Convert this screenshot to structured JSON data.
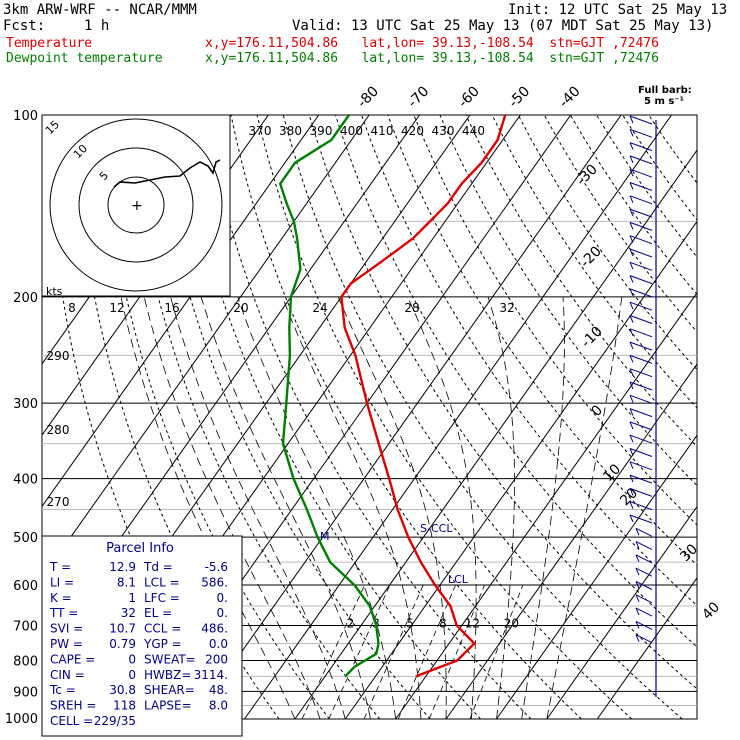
{
  "header": {
    "model": "3km ARW-WRF -- NCAR/MMM",
    "init": "Init: 12 UTC Sat 25 May 13",
    "fcst_label": "Fcst:",
    "fcst_value": "1 h",
    "valid": "Valid: 13 UTC Sat 25 May 13 (07 MDT Sat 25 May 13)",
    "temp_label": "Temperature",
    "temp_loc": "x,y=176.11,504.86   lat,lon= 39.13,-108.54  stn=GJT ,72476",
    "dew_label": "Dewpoint temperature",
    "dew_loc": "x,y=176.11,504.86   lat,lon= 39.13,-108.54  stn=GJT ,72476"
  },
  "colors": {
    "temperature": "#e00000",
    "dewpoint": "#008000",
    "barbs": "#00008b",
    "hodograph": "#000000"
  },
  "chart_data": {
    "type": "skew-t log-p sounding",
    "pressure_levels": [
      "100",
      "200",
      "300",
      "400",
      "500",
      "600",
      "700",
      "800",
      "900",
      "1000"
    ],
    "top_isotherm_labels": [
      "-80",
      "-70",
      "-60",
      "-50",
      "-40"
    ],
    "right_isotherm_labels": [
      "-30",
      "-20",
      "-10",
      "0",
      "10",
      "20",
      "30",
      "40"
    ],
    "theta_labels": [
      "370",
      "380",
      "390",
      "400",
      "410",
      "420",
      "430",
      "440"
    ],
    "theta_labels_left": [
      "290",
      "280",
      "270"
    ],
    "mixing_ratio_labels": [
      "2",
      "3",
      "5",
      "8",
      "12",
      "20"
    ],
    "hodograph_speed_labels": [
      "8",
      "12",
      "16",
      "20",
      "24",
      "28",
      "32"
    ],
    "hodograph_ring_labels": [
      "5",
      "10",
      "15"
    ],
    "hodograph_units": "kts",
    "annotations": [
      "S-CCL",
      "LCL",
      "M"
    ],
    "barb_key": {
      "line1": "Full barb:",
      "line2": "5 m s⁻¹"
    },
    "temperature": [
      [
        850,
        8
      ],
      [
        800,
        14
      ],
      [
        750,
        15
      ],
      [
        700,
        9
      ],
      [
        650,
        5
      ],
      [
        600,
        -1
      ],
      [
        550,
        -7
      ],
      [
        500,
        -13
      ],
      [
        450,
        -19
      ],
      [
        400,
        -25
      ],
      [
        350,
        -32
      ],
      [
        300,
        -40
      ],
      [
        250,
        -49
      ],
      [
        225,
        -55
      ],
      [
        200,
        -60
      ],
      [
        190,
        -60
      ],
      [
        180,
        -58
      ],
      [
        170,
        -56
      ],
      [
        160,
        -54
      ],
      [
        150,
        -53
      ],
      [
        140,
        -52
      ],
      [
        130,
        -52
      ],
      [
        120,
        -51
      ],
      [
        110,
        -51
      ],
      [
        100,
        -53
      ]
    ],
    "dewpoint": [
      [
        850,
        -6
      ],
      [
        820,
        -5.5
      ],
      [
        780,
        -3
      ],
      [
        750,
        -4
      ],
      [
        700,
        -7
      ],
      [
        650,
        -11
      ],
      [
        600,
        -17
      ],
      [
        550,
        -25
      ],
      [
        500,
        -31
      ],
      [
        450,
        -37
      ],
      [
        400,
        -44
      ],
      [
        350,
        -51
      ],
      [
        300,
        -56
      ],
      [
        250,
        -62
      ],
      [
        225,
        -66
      ],
      [
        200,
        -70
      ],
      [
        180,
        -72
      ],
      [
        160,
        -77
      ],
      [
        150,
        -80
      ],
      [
        140,
        -84
      ],
      [
        130,
        -88
      ],
      [
        120,
        -88
      ],
      [
        110,
        -84
      ],
      [
        100,
        -84
      ]
    ]
  },
  "parcel": {
    "title": "Parcel Info",
    "rows": [
      [
        "T  =",
        "12.9",
        "Td =",
        "-5.6"
      ],
      [
        "LI =",
        "8.1",
        "LCL =",
        "586."
      ],
      [
        "K  =",
        "1",
        "LFC =",
        "0."
      ],
      [
        "TT =",
        "32",
        "EL =",
        "0."
      ],
      [
        "SVI =",
        "10.7",
        "CCL =",
        "486."
      ],
      [
        "PW =",
        "0.79",
        "YGP =",
        "0.0"
      ],
      [
        "CAPE =",
        "0",
        "SWEAT=",
        "200"
      ],
      [
        "CIN =",
        "0",
        "HWBZ=",
        "3114."
      ],
      [
        "Tc =",
        "30.8",
        "SHEAR=",
        "48."
      ],
      [
        "SREH =",
        "118",
        "LAPSE=",
        "8.0"
      ],
      [
        "CELL =",
        "229/35",
        "",
        ""
      ]
    ]
  }
}
